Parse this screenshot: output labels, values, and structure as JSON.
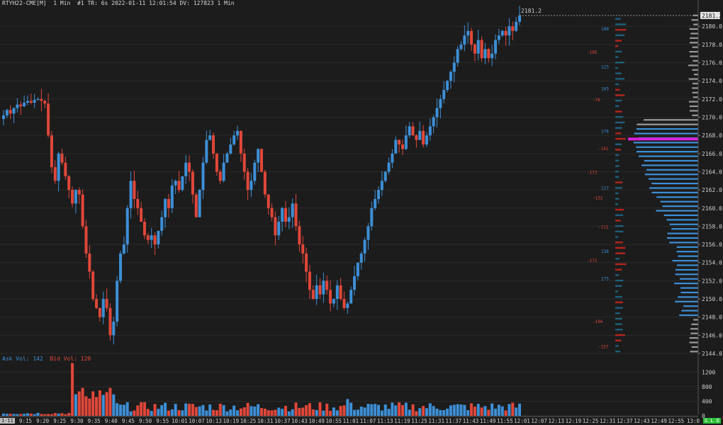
{
  "header": {
    "symbol": "RTYH22-CME[M]",
    "timeframe": "1 Min",
    "info": "#1 TR: 6s 2022-01-11 12:01:54 DV: 127823 1 Min"
  },
  "volume_label": {
    "ask": "Ask Vol: 142",
    "bid": "Bid Vol: 120"
  },
  "last_price": "2181.2",
  "price_axis": [
    "2180.0",
    "2178.0",
    "2176.0",
    "2174.0",
    "2172.0",
    "2170.0",
    "2168.0",
    "2166.0",
    "2164.0",
    "2162.0",
    "2160.0",
    "2158.0",
    "2156.0",
    "2154.0",
    "2152.0",
    "2150.0",
    "2148.0",
    "2146.0",
    "2144.0"
  ],
  "volume_axis": [
    "1200",
    "800",
    "400",
    "0"
  ],
  "time_axis": [
    "9:15",
    "9:20",
    "9:25",
    "9:30",
    "9:35",
    "9:40",
    "9:45",
    "9:50",
    "9:55",
    "10:01",
    "10:07",
    "10:13",
    "10:19",
    "10:25",
    "10:31",
    "10:37",
    "10:43",
    "10:49",
    "10:55",
    "11:01",
    "11:07",
    "11:13",
    "11:19",
    "11:25",
    "11:31",
    "11:37",
    "11:43",
    "11:49",
    "11:55",
    "12:01",
    "12:07",
    "12:13",
    "12:19",
    "12:25",
    "12:31",
    "12:37",
    "12:43",
    "12:49",
    "12:55",
    "13:0"
  ],
  "left_corner": "1-11",
  "right_corner": "S L E",
  "delta_labels_blue": [
    "100",
    "123",
    "103",
    "176",
    "117",
    "138",
    "175"
  ],
  "delta_labels_red": [
    "-105",
    "-76",
    "-141",
    "-172",
    "-132",
    "-111",
    "-171",
    "-106",
    "-157"
  ],
  "colors": {
    "background": "#1c1c1c",
    "up": "#3d8fd6",
    "down": "#e0473a",
    "poc": "#d820d8",
    "profile": "#3d8fd6",
    "grid": "#2a2a2a",
    "axis_text": "#cfcfcf"
  },
  "chart_data": {
    "type": "candlestick",
    "title": "RTYH22-CME[M] 1 Min",
    "ylim": [
      2144,
      2182
    ],
    "close_series": [
      2170.2,
      2170.8,
      2170.4,
      2171.0,
      2171.4,
      2171.2,
      2171.6,
      2171.8,
      2171.6,
      2171.9,
      2172.0,
      2171.8,
      2171.5,
      2168.0,
      2164.5,
      2163.0,
      2166.0,
      2165.0,
      2163.5,
      2162.0,
      2160.5,
      2162.0,
      2161.5,
      2158.0,
      2155.0,
      2153.0,
      2150.0,
      2149.0,
      2148.0,
      2150.0,
      2149.0,
      2146.0,
      2147.5,
      2152.0,
      2155.0,
      2156.0,
      2160.0,
      2163.0,
      2161.0,
      2160.0,
      2158.5,
      2157.0,
      2156.5,
      2157.0,
      2156.0,
      2157.5,
      2159.0,
      2161.0,
      2160.0,
      2162.5,
      2163.0,
      2162.0,
      2163.5,
      2165.0,
      2164.0,
      2161.5,
      2159.0,
      2162.0,
      2165.0,
      2167.5,
      2168.0,
      2166.0,
      2164.0,
      2163.0,
      2165.0,
      2166.0,
      2167.0,
      2168.0,
      2168.5,
      2166.0,
      2164.0,
      2162.0,
      2163.0,
      2165.0,
      2166.5,
      2164.0,
      2161.5,
      2160.0,
      2159.0,
      2157.0,
      2158.5,
      2160.0,
      2158.5,
      2159.0,
      2160.5,
      2158.0,
      2156.0,
      2155.0,
      2153.0,
      2151.0,
      2150.0,
      2151.5,
      2150.5,
      2152.0,
      2151.0,
      2149.5,
      2150.0,
      2151.5,
      2150.0,
      2149.0,
      2149.5,
      2151.0,
      2152.5,
      2154.0,
      2155.0,
      2156.5,
      2158.0,
      2160.0,
      2161.0,
      2162.0,
      2163.0,
      2164.0,
      2165.0,
      2166.0,
      2167.5,
      2167.0,
      2166.5,
      2168.0,
      2169.0,
      2168.0,
      2167.5,
      2168.5,
      2167.0,
      2168.0,
      2169.0,
      2170.0,
      2171.0,
      2172.0,
      2173.0,
      2174.0,
      2175.0,
      2176.0,
      2177.5,
      2178.0,
      2179.0,
      2179.5,
      2178.0,
      2177.0,
      2178.5,
      2176.5,
      2177.5,
      2176.5,
      2177.0,
      2178.5,
      2179.0,
      2179.5,
      2179.0,
      2180.0,
      2179.5,
      2180.5,
      2181.2
    ]
  }
}
